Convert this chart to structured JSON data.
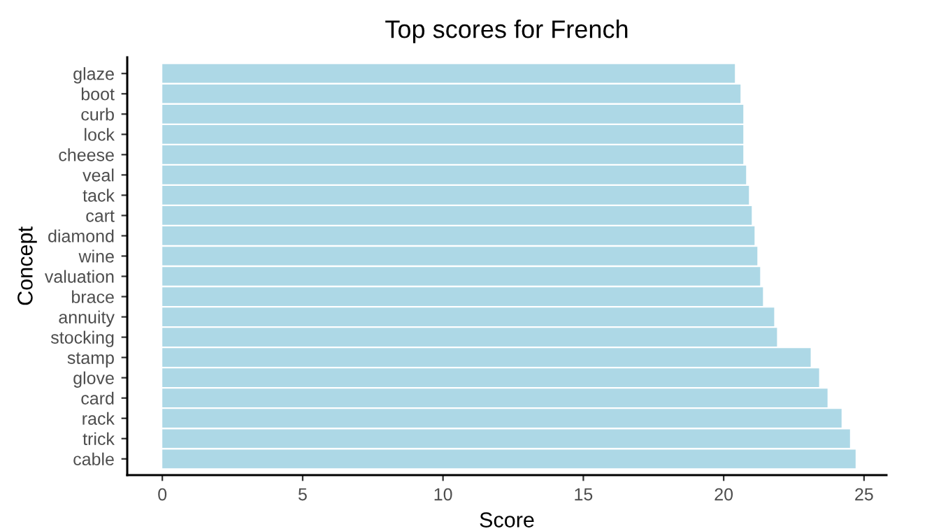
{
  "chart_data": {
    "type": "bar",
    "orientation": "horizontal",
    "title": "Top scores for French",
    "xlabel": "Score",
    "ylabel": "Concept",
    "categories": [
      "glaze",
      "boot",
      "curb",
      "lock",
      "cheese",
      "veal",
      "tack",
      "cart",
      "diamond",
      "wine",
      "valuation",
      "brace",
      "annuity",
      "stocking",
      "stamp",
      "glove",
      "card",
      "rack",
      "trick",
      "cable"
    ],
    "values": [
      20.4,
      20.6,
      20.7,
      20.7,
      20.7,
      20.8,
      20.9,
      21.0,
      21.1,
      21.2,
      21.3,
      21.4,
      21.8,
      21.9,
      23.1,
      23.4,
      23.7,
      24.2,
      24.5,
      24.7
    ],
    "color": "#add8e6",
    "xlim": [
      -1.25,
      25.8
    ],
    "xticks": [
      0,
      5,
      10,
      15,
      20,
      25
    ],
    "grid": false,
    "legend": false
  }
}
